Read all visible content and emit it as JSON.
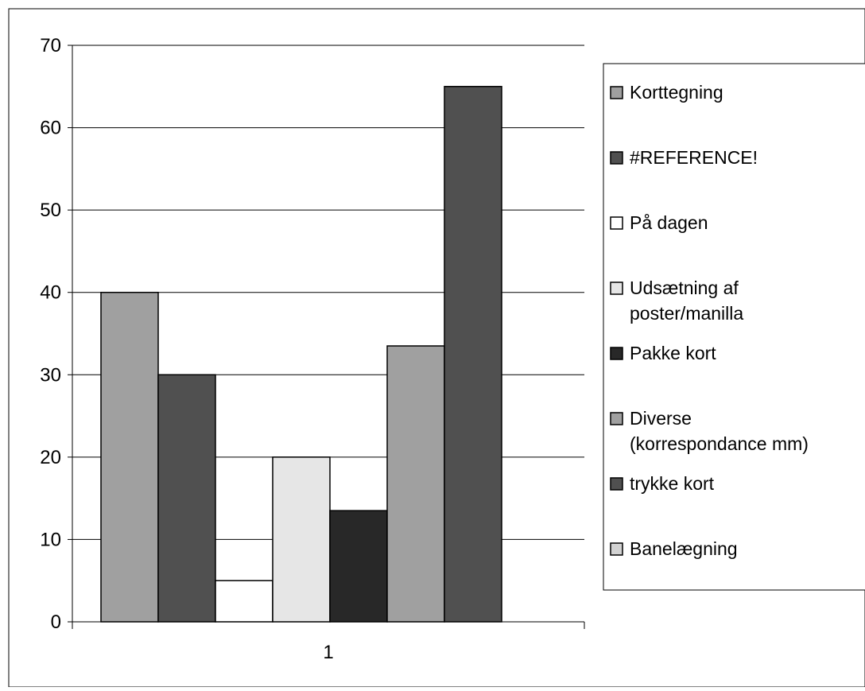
{
  "chart_data": {
    "type": "bar",
    "title": "",
    "xlabel": "",
    "ylabel": "",
    "categories": [
      "1"
    ],
    "ylim": [
      0,
      70
    ],
    "yticks": [
      0,
      10,
      20,
      30,
      40,
      50,
      60,
      70
    ],
    "grid": true,
    "legend_position": "right",
    "series": [
      {
        "name": "Korttegning",
        "values": [
          40
        ],
        "color": "#a0a0a0"
      },
      {
        "name": "#REFERENCE!",
        "values": [
          30
        ],
        "color": "#505050"
      },
      {
        "name": "På dagen",
        "values": [
          5
        ],
        "color": "#ffffff"
      },
      {
        "name": "Udsætning af poster/manilla",
        "values": [
          20
        ],
        "color": "#e6e6e6"
      },
      {
        "name": "Pakke kort",
        "values": [
          13.5
        ],
        "color": "#282828"
      },
      {
        "name": "Diverse (korrespondance mm)",
        "values": [
          33.5
        ],
        "color": "#a0a0a0"
      },
      {
        "name": "trykke kort",
        "values": [
          65
        ],
        "color": "#505050"
      },
      {
        "name": "Banelægning",
        "values": [
          0
        ],
        "color": "#d2d2d2"
      }
    ],
    "legend_lines": [
      [
        "Korttegning"
      ],
      [
        "#REFERENCE!"
      ],
      [
        "På dagen"
      ],
      [
        "Udsætning af",
        "poster/manilla"
      ],
      [
        "Pakke kort"
      ],
      [
        "Diverse",
        "(korrespondance mm)"
      ],
      [
        "trykke kort"
      ],
      [
        "Banelægning"
      ]
    ]
  }
}
